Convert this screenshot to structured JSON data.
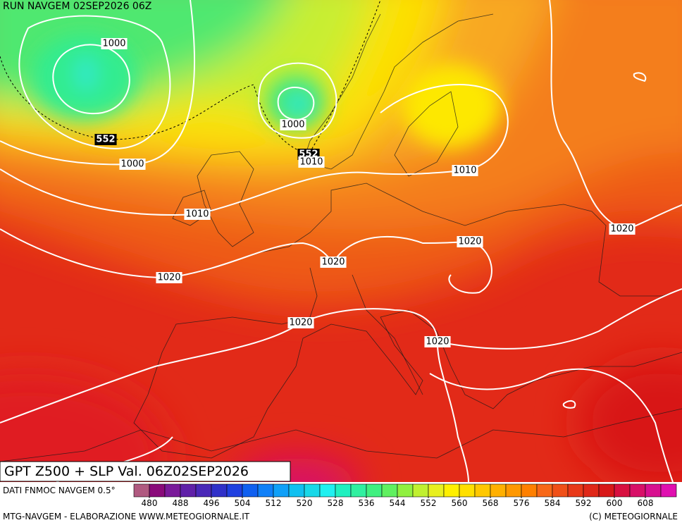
{
  "header": "RUN NAVGEM 02SEP2026 06Z",
  "title": "GPT Z500 + SLP Val. 06Z02SEP2026",
  "source": "DATI FNMOC NAVGEM 0.5°",
  "credit_left": "MTG-NAVGEM - ELABORAZIONE WWW.METEOGIORNALE.IT",
  "credit_right": "(C) METEOGIORNALE",
  "contour_labels": [
    "1000",
    "552",
    "1000",
    "1000",
    "552",
    "1010",
    "1010",
    "1010",
    "1020",
    "1020",
    "1020",
    "1020",
    "1020",
    "1020"
  ],
  "colorbar": {
    "lim": [
      476,
      616
    ],
    "ticks": [
      480,
      488,
      496,
      504,
      512,
      520,
      528,
      536,
      544,
      552,
      560,
      568,
      576,
      584,
      592,
      600,
      608
    ],
    "colors": [
      "#b05a80",
      "#8a0a7a",
      "#7a1a9a",
      "#6020a8",
      "#4a28b8",
      "#3030c8",
      "#2040e0",
      "#1060f0",
      "#1080f8",
      "#10a0f8",
      "#10c0f0",
      "#18d8e8",
      "#20f0f0",
      "#20f0c0",
      "#30f0a0",
      "#40f080",
      "#60f060",
      "#90f040",
      "#c0f030",
      "#e8f020",
      "#fff000",
      "#ffe000",
      "#ffc800",
      "#ffb000",
      "#ff9800",
      "#ff8000",
      "#f86818",
      "#f05018",
      "#e83818",
      "#e02818",
      "#d81818",
      "#d81040",
      "#d81068",
      "#d81090",
      "#e010b0"
    ]
  }
}
